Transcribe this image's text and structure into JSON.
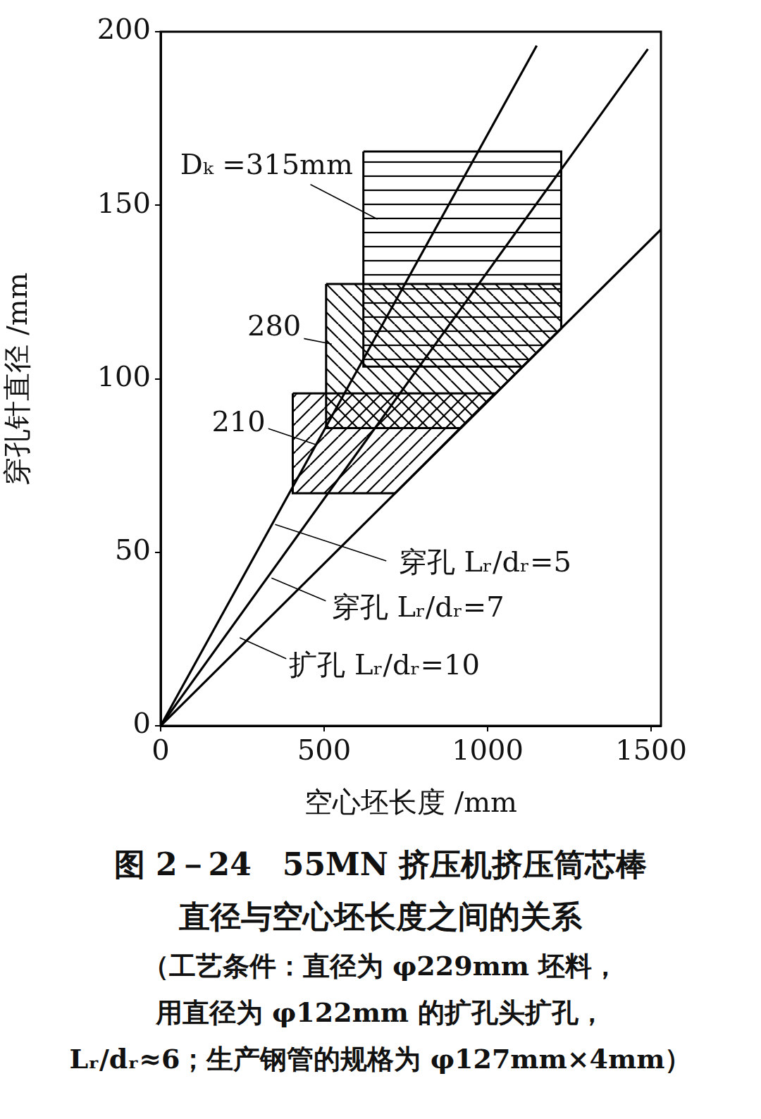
{
  "chart_data": {
    "type": "line",
    "title": [
      "图 2－24　55MN 挤压机挤压筒芯棒",
      "直径与空心坯长度之间的关系"
    ],
    "subtitle": [
      "（工艺条件：直径为 φ229mm 坯料，",
      "用直径为 φ122mm 的扩孔头扩孔，",
      "Lᵣ/dᵣ≈6；生产钢管的规格为 φ127mm×4mm）"
    ],
    "x_label": "空心坯长度 /mm",
    "y_label": "穿孔针直径 /mm",
    "xlim": [
      0,
      1530
    ],
    "xticks": [
      0,
      500,
      1000,
      1500
    ],
    "ylim": [
      0,
      200
    ],
    "yticks": [
      0,
      50,
      100,
      150,
      200
    ],
    "grid": false,
    "series": [
      {
        "name": "Dₖ =315mm",
        "type": "area",
        "color": "#000000",
        "x": [
          620,
          1225,
          1225,
          1107,
          620,
          620
        ],
        "values": [
          165.5,
          165.5,
          114.5,
          103.5,
          103.5,
          165.5
        ]
      },
      {
        "name": "280",
        "type": "area",
        "color": "#000000",
        "x": [
          506,
          1225,
          1225,
          918,
          506,
          506
        ],
        "values": [
          127.3,
          127.3,
          114.5,
          85.8,
          85.8,
          127.3
        ]
      },
      {
        "name": "210",
        "type": "area",
        "color": "#000000",
        "x": [
          404,
          1024,
          717,
          404,
          404
        ],
        "values": [
          95.8,
          95.8,
          67,
          67,
          95.8
        ]
      },
      {
        "name": "穿孔 Lᵣ/dᵣ=5",
        "type": "line",
        "color": "#000000",
        "x": [
          0,
          1150
        ],
        "values": [
          0,
          196
        ]
      },
      {
        "name": "穿孔 Lᵣ/dᵣ=7",
        "type": "line",
        "color": "#000000",
        "x": [
          0,
          1490
        ],
        "values": [
          0,
          195
        ]
      },
      {
        "name": "扩孔 Lᵣ/dᵣ=10",
        "type": "line",
        "color": "#000000",
        "x": [
          0,
          1530
        ],
        "values": [
          0,
          143
        ]
      }
    ]
  }
}
